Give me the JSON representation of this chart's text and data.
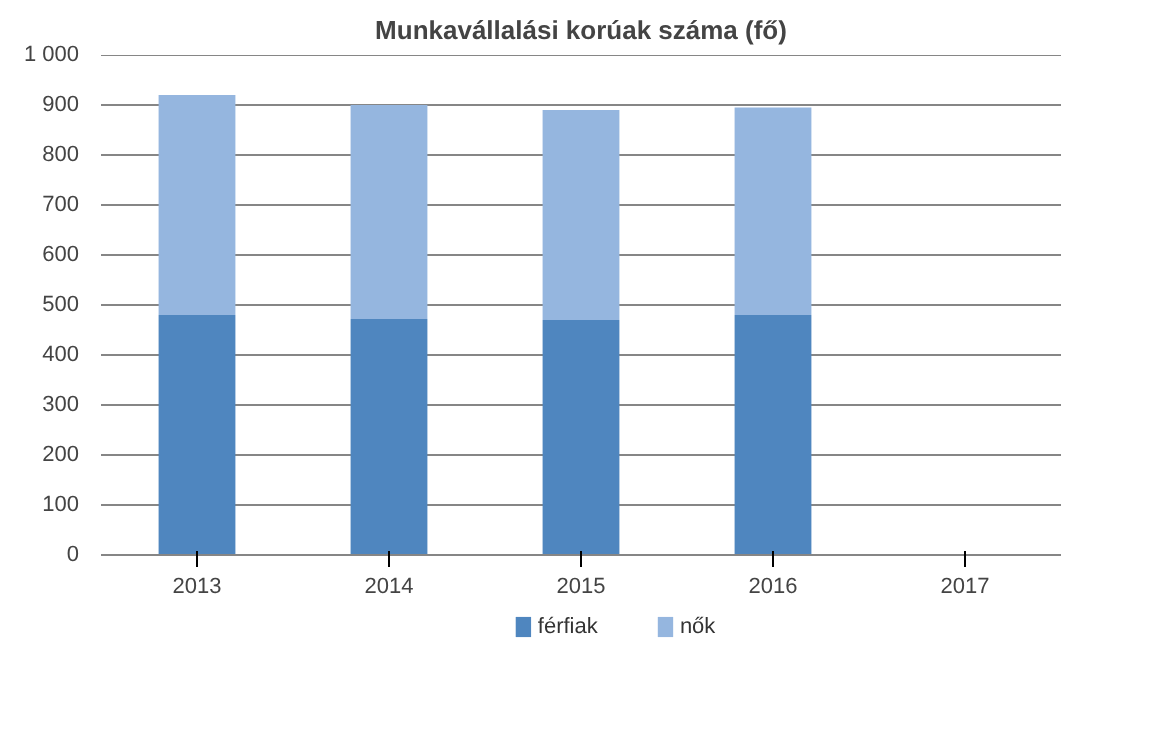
{
  "chart_data": {
    "type": "bar",
    "title": "Munkavállalási korúak száma (fő)",
    "categories": [
      "2013",
      "2014",
      "2015",
      "2016",
      "2017"
    ],
    "stacked": true,
    "series": [
      {
        "name": "férfiak",
        "color": "#4f86bf",
        "values": [
          480,
          472,
          470,
          480,
          null
        ]
      },
      {
        "name": "nők",
        "color": "#95b6df",
        "values": [
          440,
          428,
          420,
          415,
          null
        ]
      }
    ],
    "ylim": [
      0,
      1000
    ],
    "yticks": [
      0,
      100,
      200,
      300,
      400,
      500,
      600,
      700,
      800,
      900,
      {
        "value": 1000,
        "label": "1 000"
      }
    ],
    "grid": "y",
    "legend": "bottom"
  }
}
